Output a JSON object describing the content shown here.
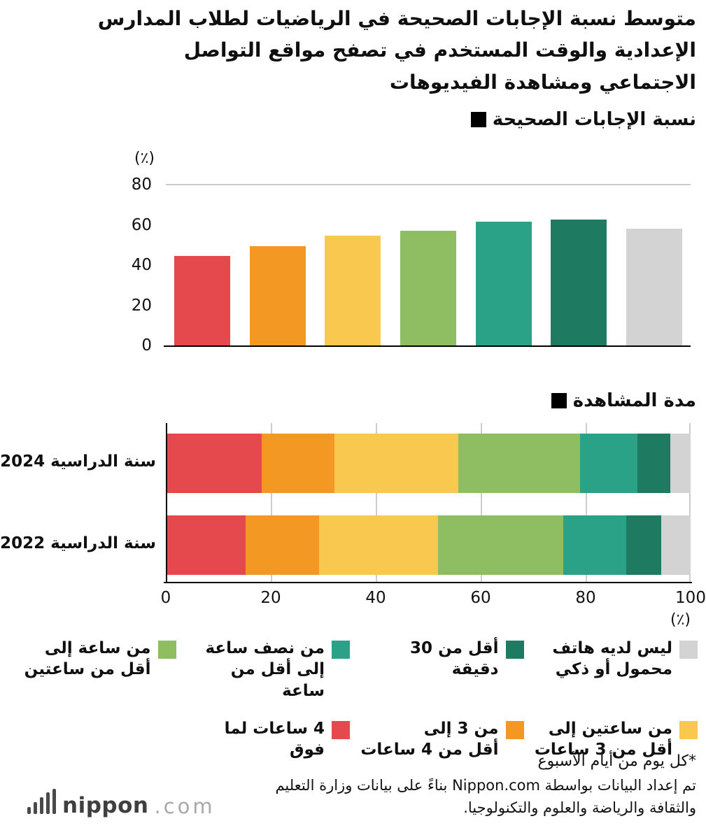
{
  "title": "متوسط نسبة الإجابات الصحيحة في الرياضيات لطلاب المدارس\nالإعدادية والوقت المستخدم في تصفح مواقع التواصل\nالاجتماعي ومشاهدة الفيديوهات",
  "sections": {
    "chart1_header": "نسبة الإجابات الصحيحة",
    "chart2_header": "مدة المشاهدة"
  },
  "colors": {
    "red": "#e5494d",
    "orange": "#f39822",
    "yellow": "#f9c84f",
    "light_green": "#8ebd62",
    "teal": "#2aa288",
    "dark_green": "#1e7a60",
    "gray": "#d3d3d4",
    "gridline": "#cccccc",
    "axis": "#000000",
    "text": "#111111"
  },
  "chart_data": [
    {
      "type": "bar",
      "title": "نسبة الإجابات الصحيحة",
      "ylabel": "(٪)",
      "ylim": [
        0,
        80
      ],
      "yticks": [
        0,
        20,
        40,
        60,
        80
      ],
      "grid": "top-line-at-80-only",
      "categories": [
        "4 ساعات لما فوق",
        "من 3 إلى أقل من 4 ساعات",
        "من ساعتين إلى أقل من 3 ساعات",
        "من ساعة إلى أقل من ساعتين",
        "من نصف ساعة إلى أقل من ساعة",
        "أقل من 30 دقيقة",
        "ليس لديه هاتف محمول أو ذكي"
      ],
      "values": [
        44.5,
        49.5,
        54.5,
        57,
        61.5,
        62.5,
        58
      ],
      "colors": [
        "#e5494d",
        "#f39822",
        "#f9c84f",
        "#8ebd62",
        "#2aa288",
        "#1e7a60",
        "#d3d3d4"
      ]
    },
    {
      "type": "stacked-bar-horizontal",
      "title": "مدة المشاهدة",
      "xlabel": "(٪)",
      "xlim": [
        0,
        100
      ],
      "xticks": [
        0,
        20,
        40,
        60,
        80,
        100
      ],
      "grid": "vertical-gridlines-at-ticks",
      "categories": [
        "سنة الدراسية 2024",
        "سنة الدراسية 2022"
      ],
      "series": [
        {
          "name": "4 ساعات لما فوق",
          "color": "#e5494d",
          "values": [
            18.3,
            15.2
          ]
        },
        {
          "name": "من 3 إلى أقل من 4 ساعات",
          "color": "#f39822",
          "values": [
            13.9,
            14.0
          ]
        },
        {
          "name": "من ساعتين إلى أقل من 3 ساعات",
          "color": "#f9c84f",
          "values": [
            23.6,
            22.6
          ]
        },
        {
          "name": "من ساعة إلى أقل من ساعتين",
          "color": "#8ebd62",
          "values": [
            23.1,
            23.9
          ]
        },
        {
          "name": "من نصف ساعة إلى أقل من ساعة",
          "color": "#2aa288",
          "values": [
            11.0,
            12.0
          ]
        },
        {
          "name": "أقل من 30 دقيقة",
          "color": "#1e7a60",
          "values": [
            6.3,
            6.7
          ]
        },
        {
          "name": "ليس لديه هاتف محمول أو ذكي",
          "color": "#d3d3d4",
          "values": [
            3.8,
            5.6
          ]
        }
      ]
    }
  ],
  "legend": {
    "items": [
      {
        "key": "no-phone",
        "label": "ليس لديه هاتف\nمحمول أو ذكي",
        "color": "#d3d3d4"
      },
      {
        "key": "under-30min",
        "label": "أقل من 30 دقيقة",
        "color": "#1e7a60"
      },
      {
        "key": "half-to-1hr",
        "label": "من نصف ساعة\nإلى أقل من ساعة",
        "color": "#2aa288"
      },
      {
        "key": "1-to-2hr",
        "label": "من ساعة إلى\nأقل من ساعتين",
        "color": "#8ebd62"
      },
      {
        "key": "2-to-3hr",
        "label": "من ساعتين إلى\nأقل من 3 ساعات",
        "color": "#f9c84f"
      },
      {
        "key": "3-to-4hr",
        "label": "من 3 إلى\nأقل من 4 ساعات",
        "color": "#f39822"
      },
      {
        "key": "4hr-plus",
        "label": "4 ساعات لما فوق",
        "color": "#e5494d"
      }
    ]
  },
  "footnotes": {
    "note": "*كل يوم من أيام الأسبوع",
    "credit": "تم إعداد البيانات بواسطة Nippon.com بناءً على بيانات وزارة التعليم\nوالثقافة والرياضة والعلوم والتكنولوجيا."
  },
  "logo": {
    "name": "nippon",
    "suffix": ".com"
  }
}
